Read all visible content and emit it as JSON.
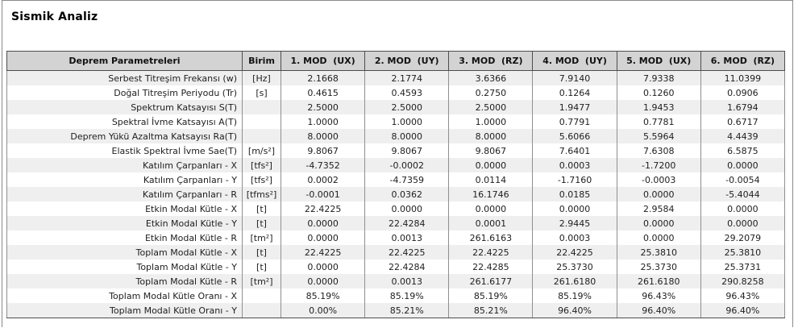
{
  "title": "Sismik Analiz",
  "colors": {
    "header_bg": "#d3d3d3",
    "stripe_bg": "#efefef",
    "outer_border": "#4d4d4d",
    "inner_border": "#8f8f8f",
    "text": "#1e1e1e"
  },
  "table": {
    "header": {
      "param": "Deprem Parametreleri",
      "unit": "Birim",
      "modes": [
        "1. MOD  (UX)",
        "2. MOD  (UY)",
        "3. MOD  (RZ)",
        "4. MOD  (UY)",
        "5. MOD  (UX)",
        "6. MOD  (RZ)"
      ]
    },
    "rows": [
      {
        "param": "Serbest Titreşim Frekansı (w)",
        "unit": "[Hz]",
        "values": [
          "2.1668",
          "2.1774",
          "3.6366",
          "7.9140",
          "7.9338",
          "11.0399"
        ]
      },
      {
        "param": "Doğal Titreşim Periyodu (Tr)",
        "unit": "[s]",
        "values": [
          "0.4615",
          "0.4593",
          "0.2750",
          "0.1264",
          "0.1260",
          "0.0906"
        ]
      },
      {
        "param": "Spektrum Katsayısı S(T)",
        "unit": "",
        "values": [
          "2.5000",
          "2.5000",
          "2.5000",
          "1.9477",
          "1.9453",
          "1.6794"
        ]
      },
      {
        "param": "Spektral İvme Katsayısı A(T)",
        "unit": "",
        "values": [
          "1.0000",
          "1.0000",
          "1.0000",
          "0.7791",
          "0.7781",
          "0.6717"
        ]
      },
      {
        "param": "Deprem Yükü Azaltma Katsayısı Ra(T)",
        "unit": "",
        "values": [
          "8.0000",
          "8.0000",
          "8.0000",
          "5.6066",
          "5.5964",
          "4.4439"
        ]
      },
      {
        "param": "Elastik Spektral İvme Sae(T)",
        "unit": "[m/s²]",
        "values": [
          "9.8067",
          "9.8067",
          "9.8067",
          "7.6401",
          "7.6308",
          "6.5875"
        ]
      },
      {
        "param": "Katılım Çarpanları - X",
        "unit": "[tfs²]",
        "values": [
          "-4.7352",
          "-0.0002",
          "0.0000",
          "0.0003",
          "-1.7200",
          "0.0000"
        ]
      },
      {
        "param": "Katılım Çarpanları - Y",
        "unit": "[tfs²]",
        "values": [
          "0.0002",
          "-4.7359",
          "0.0114",
          "-1.7160",
          "-0.0003",
          "-0.0054"
        ]
      },
      {
        "param": "Katılım Çarpanları - R",
        "unit": "[tfms²]",
        "values": [
          "-0.0001",
          "0.0362",
          "16.1746",
          "0.0185",
          "0.0000",
          "-5.4044"
        ]
      },
      {
        "param": "Etkin Modal Kütle - X",
        "unit": "[t]",
        "values": [
          "22.4225",
          "0.0000",
          "0.0000",
          "0.0000",
          "2.9584",
          "0.0000"
        ]
      },
      {
        "param": "Etkin Modal Kütle - Y",
        "unit": "[t]",
        "values": [
          "0.0000",
          "22.4284",
          "0.0001",
          "2.9445",
          "0.0000",
          "0.0000"
        ]
      },
      {
        "param": "Etkin Modal Kütle - R",
        "unit": "[tm²]",
        "values": [
          "0.0000",
          "0.0013",
          "261.6163",
          "0.0003",
          "0.0000",
          "29.2079"
        ]
      },
      {
        "param": "Toplam Modal Kütle - X",
        "unit": "[t]",
        "values": [
          "22.4225",
          "22.4225",
          "22.4225",
          "22.4225",
          "25.3810",
          "25.3810"
        ]
      },
      {
        "param": "Toplam Modal Kütle - Y",
        "unit": "[t]",
        "values": [
          "0.0000",
          "22.4284",
          "22.4285",
          "25.3730",
          "25.3730",
          "25.3731"
        ]
      },
      {
        "param": "Toplam Modal Kütle - R",
        "unit": "[tm²]",
        "values": [
          "0.0000",
          "0.0013",
          "261.6177",
          "261.6180",
          "261.6180",
          "290.8258"
        ]
      },
      {
        "param": "Toplam Modal Kütle Oranı - X",
        "unit": "",
        "values": [
          "85.19%",
          "85.19%",
          "85.19%",
          "85.19%",
          "96.43%",
          "96.43%"
        ]
      },
      {
        "param": "Toplam Modal Kütle Oranı - Y",
        "unit": "",
        "values": [
          "0.00%",
          "85.21%",
          "85.21%",
          "96.40%",
          "96.40%",
          "96.40%"
        ]
      }
    ]
  }
}
